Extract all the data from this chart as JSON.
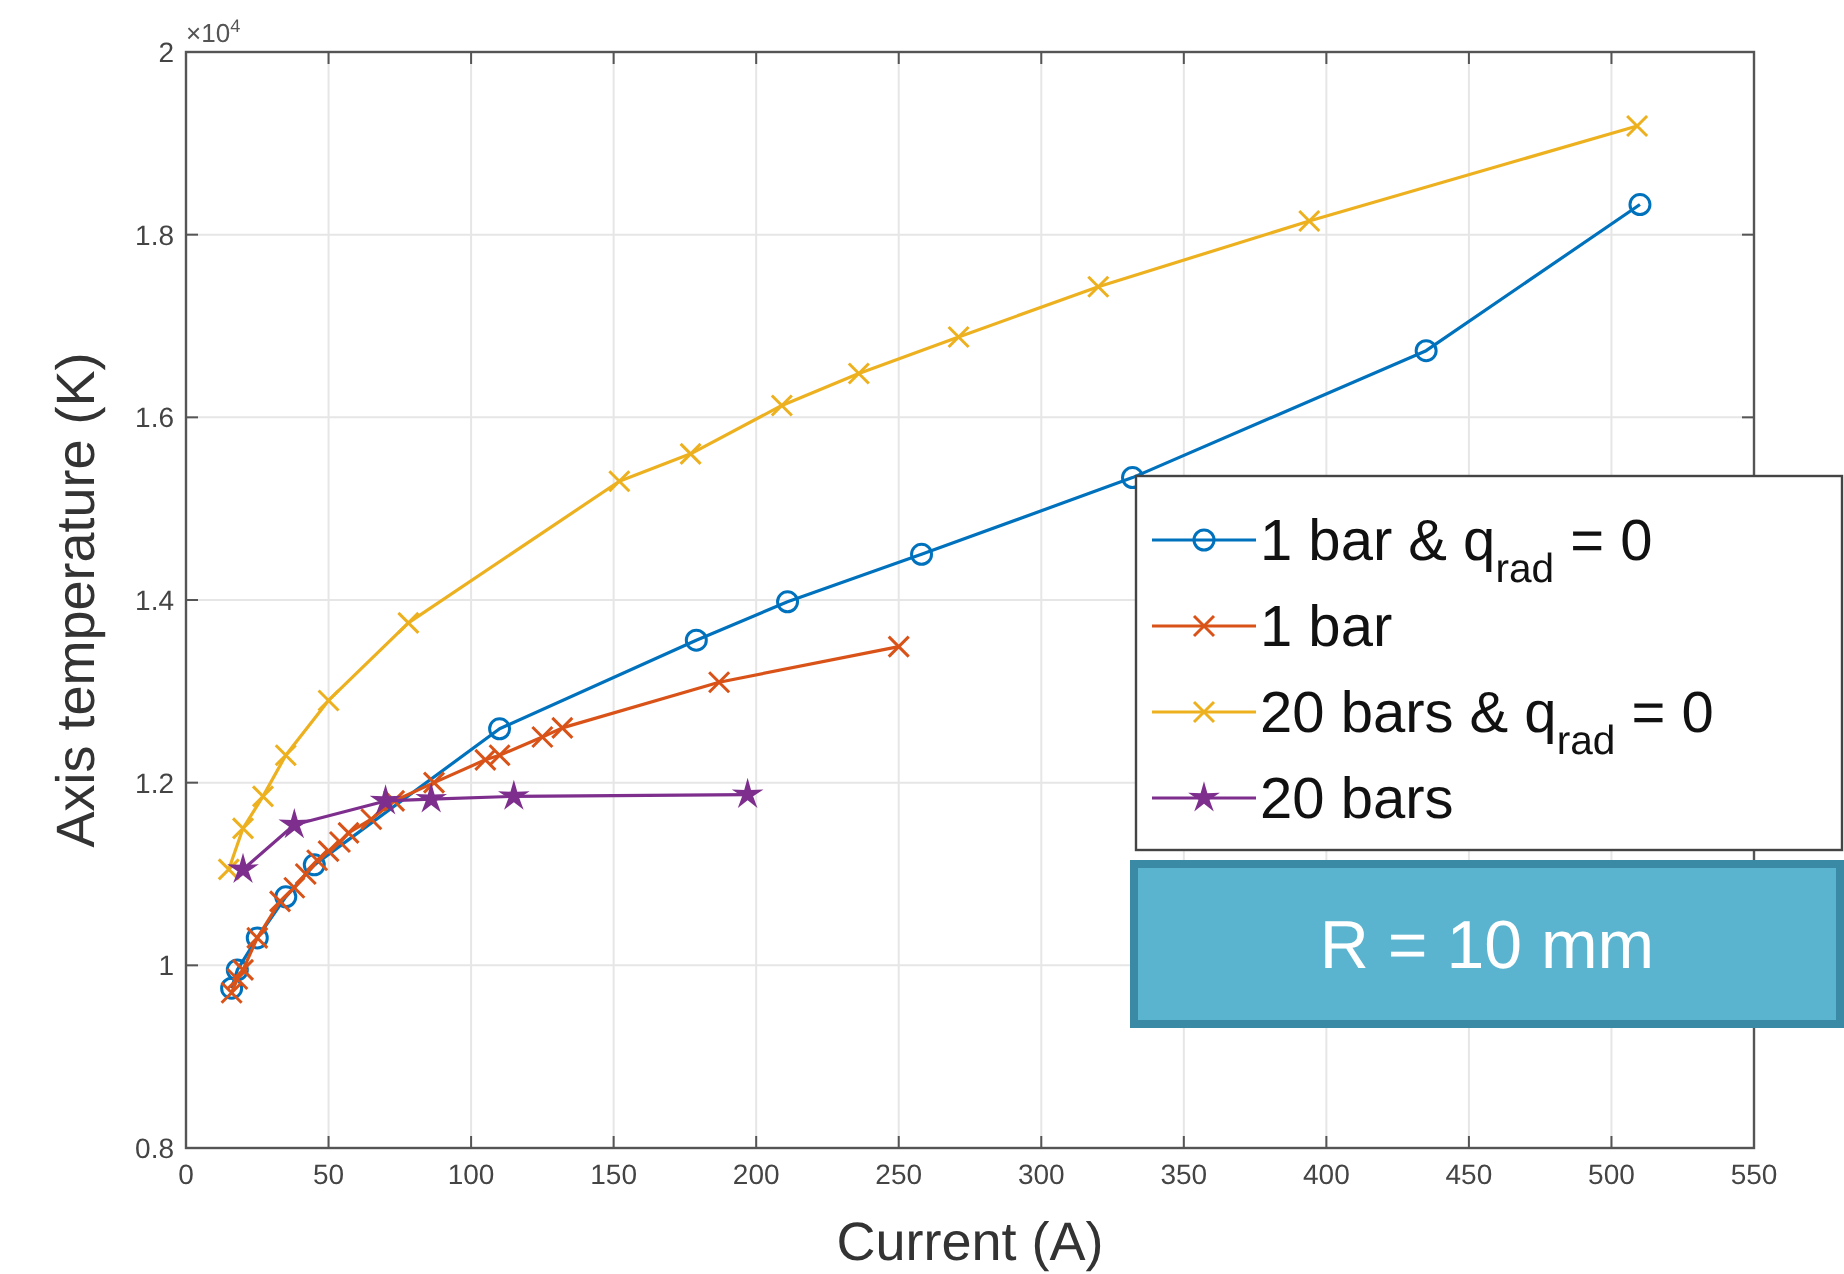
{
  "chart_data": {
    "type": "line",
    "xlabel": "Current (A)",
    "ylabel": "Axis temperature (K)",
    "xlim": [
      0,
      550
    ],
    "xticks": [
      0,
      50,
      100,
      150,
      200,
      250,
      300,
      350,
      400,
      450,
      500,
      550
    ],
    "ylim": [
      0.8,
      2
    ],
    "yticks": [
      0.8,
      1,
      1.2,
      1.4,
      1.6,
      1.8,
      2
    ],
    "grid": true,
    "legend": "right",
    "annotations": [
      "×10$^{4}$",
      "R = 10 mm"
    ],
    "series": [
      {
        "name": "1 bar & q$_{rad}$ = 0",
        "color": "#0072bd",
        "marker": "circle",
        "x": [
          16,
          18,
          25,
          35,
          45,
          110,
          179,
          211,
          258,
          332,
          435,
          510
        ],
        "values": [
          0.975,
          0.995,
          1.03,
          1.075,
          1.11,
          1.259,
          1.356,
          1.398,
          1.45,
          1.534,
          1.673,
          1.833
        ]
      },
      {
        "name": "1 bar",
        "color": "#d95319",
        "marker": "cross",
        "x": [
          16,
          18,
          20,
          25,
          33,
          38,
          42,
          46,
          50,
          54,
          57,
          65,
          73,
          87,
          105,
          110,
          125,
          132,
          187,
          250
        ],
        "values": [
          0.97,
          0.985,
          0.995,
          1.03,
          1.07,
          1.085,
          1.1,
          1.115,
          1.125,
          1.135,
          1.145,
          1.16,
          1.18,
          1.2,
          1.225,
          1.23,
          1.25,
          1.26,
          1.31,
          1.349
        ]
      },
      {
        "name": "20 bars & q$_{rad}$ = 0",
        "color": "#edb120",
        "marker": "cross",
        "x": [
          15,
          20,
          27,
          35,
          50,
          78,
          152,
          177,
          209,
          236,
          271,
          320,
          394,
          509
        ],
        "values": [
          1.105,
          1.15,
          1.185,
          1.23,
          1.29,
          1.375,
          1.53,
          1.56,
          1.613,
          1.648,
          1.688,
          1.743,
          1.815,
          1.919
        ]
      },
      {
        "name": "20 bars",
        "color": "#7e2f8e",
        "marker": "star",
        "x": [
          20,
          38,
          70,
          86,
          115,
          197
        ],
        "values": [
          1.105,
          1.154,
          1.18,
          1.182,
          1.185,
          1.187
        ]
      }
    ]
  }
}
